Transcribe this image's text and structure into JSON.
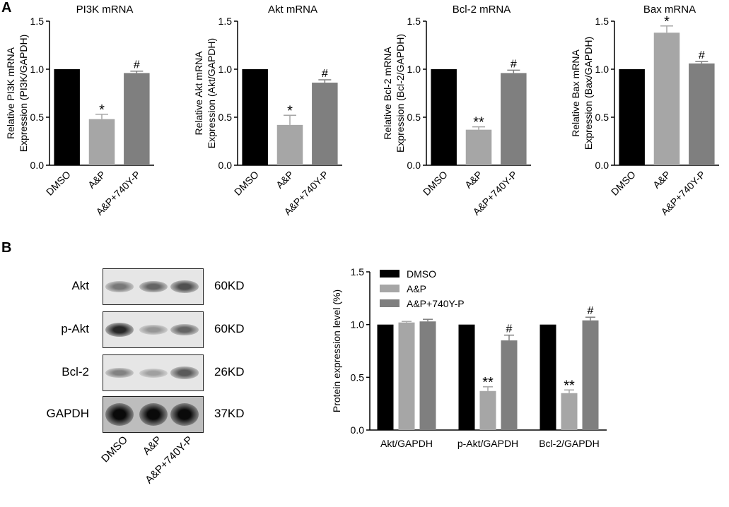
{
  "panels": {
    "a": "A",
    "b": "B"
  },
  "colors": {
    "dmso": "#000000",
    "ap": "#a6a6a6",
    "ap740": "#7f7f7f"
  },
  "chart_data": [
    {
      "type": "bar",
      "title": "PI3K mRNA",
      "ylabel": "Relative PI3K mRNA\nExpression (PI3K/GAPDH)",
      "categories": [
        "DMSO",
        "A&P",
        "A&P+740Y-P"
      ],
      "values": [
        1.0,
        0.48,
        0.96
      ],
      "errors": [
        0,
        0.05,
        0.02
      ],
      "annotations": [
        "",
        "*",
        "#"
      ],
      "ylim": [
        0,
        1.5
      ],
      "yticks": [
        "0.0",
        "0.5",
        "1.0",
        "1.5"
      ]
    },
    {
      "type": "bar",
      "title": "Akt mRNA",
      "ylabel": "Relative Akt mRNA\nExpression (Akt/GAPDH)",
      "categories": [
        "DMSO",
        "A&P",
        "A&P+740Y-P"
      ],
      "values": [
        1.0,
        0.42,
        0.86
      ],
      "errors": [
        0,
        0.1,
        0.03
      ],
      "annotations": [
        "",
        "*",
        "#"
      ],
      "ylim": [
        0,
        1.5
      ],
      "yticks": [
        "0.0",
        "0.5",
        "1.0",
        "1.5"
      ]
    },
    {
      "type": "bar",
      "title": "Bcl-2 mRNA",
      "ylabel": "Relative Bcl-2 mRNA\nExpression (Bcl-2/GAPDH)",
      "categories": [
        "DMSO",
        "A&P",
        "A&P+740Y-P"
      ],
      "values": [
        1.0,
        0.37,
        0.96
      ],
      "errors": [
        0,
        0.03,
        0.03
      ],
      "annotations": [
        "",
        "**",
        "#"
      ],
      "ylim": [
        0,
        1.5
      ],
      "yticks": [
        "0.0",
        "0.5",
        "1.0",
        "1.5"
      ]
    },
    {
      "type": "bar",
      "title": "Bax mRNA",
      "ylabel": "Relative Bax mRNA\nExpression (Bax/GAPDH)",
      "categories": [
        "DMSO",
        "A&P",
        "A&P+740Y-P"
      ],
      "values": [
        1.0,
        1.38,
        1.06
      ],
      "errors": [
        0,
        0.07,
        0.02
      ],
      "annotations": [
        "",
        "*",
        "#"
      ],
      "ylim": [
        0,
        1.5
      ],
      "yticks": [
        "0.0",
        "0.5",
        "1.0",
        "1.5"
      ]
    },
    {
      "type": "bar",
      "title": "",
      "ylabel": "Protein expression level (%)",
      "categories": [
        "Akt/GAPDH",
        "p-Akt/GAPDH",
        "Bcl-2/GAPDH"
      ],
      "series": [
        {
          "name": "DMSO",
          "values": [
            1.0,
            1.0,
            1.0
          ],
          "errors": [
            0,
            0,
            0
          ],
          "annotations": [
            "",
            "",
            ""
          ]
        },
        {
          "name": "A&P",
          "values": [
            1.02,
            0.37,
            0.35
          ],
          "errors": [
            0.01,
            0.04,
            0.03
          ],
          "annotations": [
            "",
            "**",
            "**"
          ]
        },
        {
          "name": "A&P+740Y-P",
          "values": [
            1.03,
            0.85,
            1.04
          ],
          "errors": [
            0.02,
            0.05,
            0.03
          ],
          "annotations": [
            "",
            "#",
            "#"
          ]
        }
      ],
      "legend": "top-left",
      "ylim": [
        0,
        1.5
      ],
      "yticks": [
        "0.0",
        "0.5",
        "1.0",
        "1.5"
      ]
    }
  ],
  "blot": {
    "rows": [
      {
        "label": "Akt",
        "kd": "60KD",
        "intensity": [
          0.45,
          0.55,
          0.65
        ]
      },
      {
        "label": "p-Akt",
        "kd": "60KD",
        "intensity": [
          0.85,
          0.3,
          0.55
        ]
      },
      {
        "label": "Bcl-2",
        "kd": "26KD",
        "intensity": [
          0.4,
          0.25,
          0.6
        ]
      },
      {
        "label": "GAPDH",
        "kd": "37KD",
        "intensity": [
          1.0,
          1.0,
          1.0
        ]
      }
    ],
    "lanes": [
      "DMSO",
      "A&P",
      "A&P+740Y-P"
    ]
  }
}
